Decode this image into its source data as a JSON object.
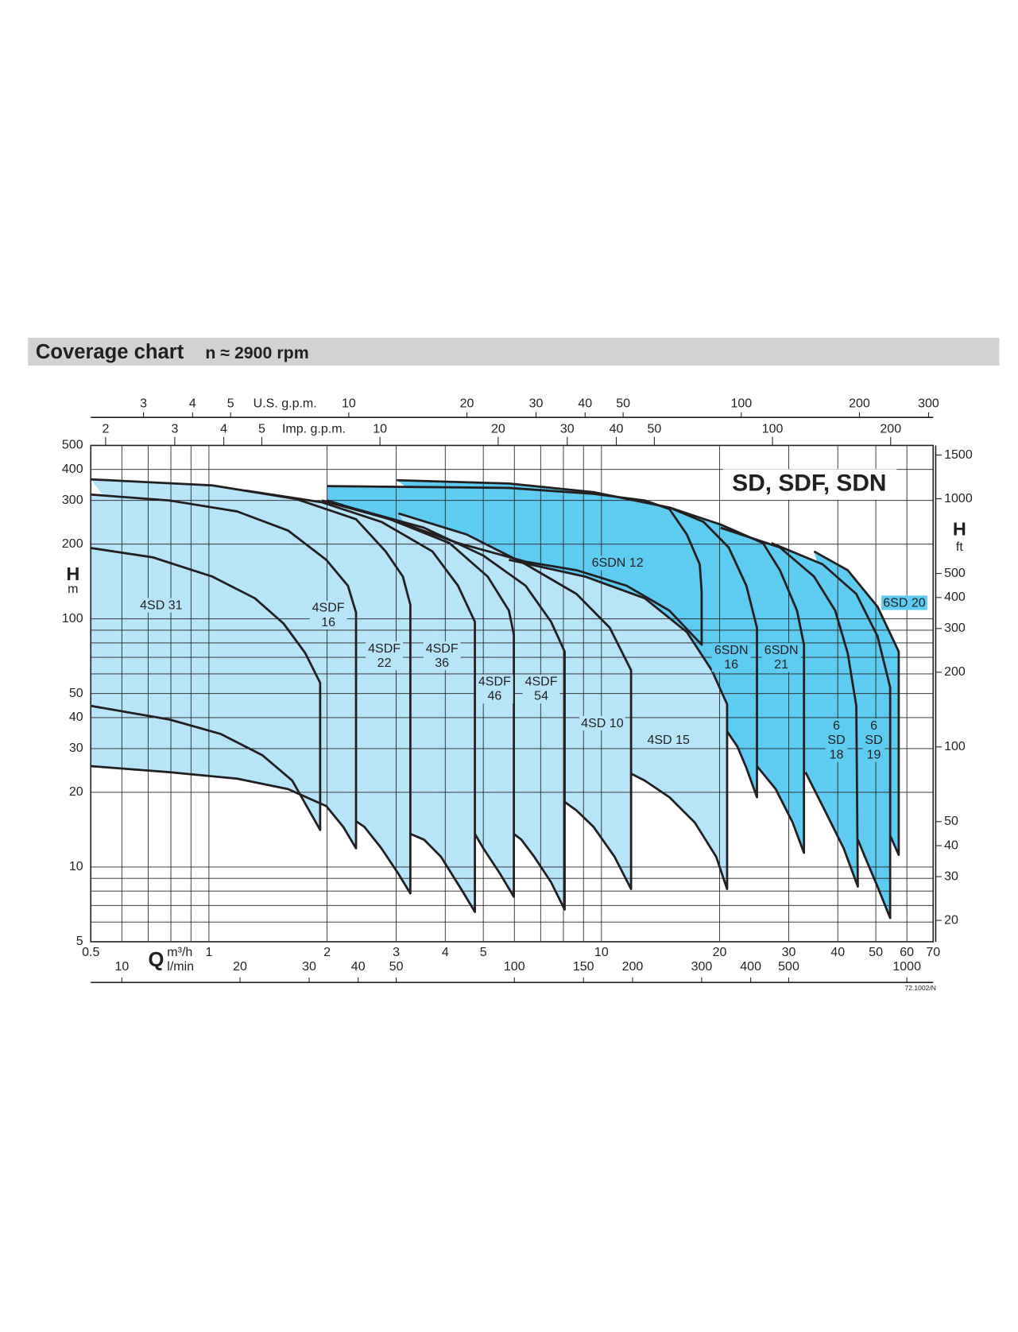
{
  "chart_data": {
    "type": "coverage",
    "title": "Coverage chart",
    "subtitle": "n ≈ 2900 rpm",
    "label": "SD, SDF, SDN",
    "code": "72.1002/N",
    "x_label": "Q",
    "x_unit": "m³/h",
    "xscale": "log",
    "xlim": [
      0.5,
      70
    ],
    "xticks": [
      0.5,
      1,
      2,
      3,
      4,
      5,
      10,
      20,
      30,
      40,
      50,
      60,
      70
    ],
    "xgrid": [
      0.5,
      0.6,
      0.7,
      0.8,
      0.9,
      1,
      2,
      3,
      4,
      5,
      6,
      7,
      8,
      9,
      10,
      20,
      30,
      40,
      50,
      60,
      70
    ],
    "y_label": "H",
    "y_unit": "m",
    "yscale": "log",
    "ylim": [
      5,
      500
    ],
    "yticks": [
      5,
      10,
      20,
      30,
      40,
      50,
      100,
      200,
      300,
      400,
      500
    ],
    "ygrid": [
      5,
      6,
      7,
      8,
      9,
      10,
      20,
      30,
      40,
      50,
      60,
      70,
      80,
      90,
      100,
      200,
      300,
      400,
      500
    ],
    "x2": {
      "unit": "l/min",
      "lim": [
        8.333,
        1166.67
      ],
      "ticks": [
        10,
        20,
        30,
        40,
        50,
        100,
        150,
        200,
        300,
        400,
        500,
        1000
      ]
    },
    "x3": {
      "unit": "U.S. g.p.m.",
      "lim": [
        2.2015,
        308.2
      ],
      "ticks": [
        3,
        4,
        5,
        10,
        20,
        30,
        40,
        50,
        100,
        200,
        300
      ]
    },
    "x4": {
      "unit": "Imp. g.p.m.",
      "lim": [
        1.8331,
        256.63
      ],
      "ticks": [
        2,
        3,
        4,
        5,
        10,
        20,
        30,
        40,
        50,
        100,
        200
      ]
    },
    "y2_label": "H",
    "y2_unit": "ft",
    "y2lim": [
      16.404,
      1640.4
    ],
    "y2ticks": [
      20,
      30,
      40,
      50,
      100,
      200,
      300,
      400,
      500,
      1000,
      1500
    ],
    "grid": true,
    "series": [
      {
        "name": "4SD 31",
        "color": "#b8e4f8",
        "x": [
          0.5,
          0.719,
          1.02,
          1.31,
          1.55,
          1.76,
          1.92,
          1.92,
          1.8,
          1.63,
          1.37,
          1.07,
          0.794,
          0.5
        ],
        "values": [
          193,
          177,
          148,
          121,
          95.7,
          72.7,
          55.2,
          14.1,
          16.9,
          22.3,
          28.2,
          34.4,
          39.3,
          44.6
        ]
      },
      {
        "name": "4SDF 16",
        "color": "#b8e4f8",
        "x": [
          0.5,
          0.794,
          1.18,
          1.59,
          1.99,
          2.26,
          2.37,
          2.37,
          2.2,
          1.99,
          1.59,
          1.18,
          0.794,
          0.5
        ],
        "values": [
          317,
          300,
          271,
          227,
          173,
          136,
          106,
          11.9,
          14.5,
          17.6,
          20.6,
          22.7,
          24.1,
          25.5
        ]
      },
      {
        "name": "4SDF 22",
        "color": "#b8e4f8",
        "x": [
          0.5,
          1.02,
          1.67,
          2.37,
          2.82,
          3.12,
          3.26,
          3.26,
          3.04,
          2.75,
          2.49,
          2.37
        ],
        "values": [
          365,
          345,
          304,
          252,
          187,
          148,
          114,
          7.83,
          9.38,
          11.9,
          14.5,
          15.3
        ]
      },
      {
        "name": "4SDF 36",
        "color": "#b8e4f8",
        "x": [
          1.24,
          1.94,
          2.75,
          3.71,
          4.31,
          4.76,
          4.76,
          4.42,
          3.9,
          3.53,
          3.26
        ],
        "values": [
          329,
          295,
          246,
          187,
          136,
          97.3,
          6.59,
          8.02,
          11.0,
          12.9,
          13.6
        ]
      },
      {
        "name": "4SDF 46",
        "color": "#b8e4f8",
        "x": [
          1.94,
          2.89,
          4.1,
          5.13,
          5.81,
          5.98,
          5.98,
          5.52,
          5.0,
          4.76
        ],
        "values": [
          300,
          252,
          202,
          148,
          108,
          86.5,
          7.59,
          9.38,
          11.9,
          13.6
        ]
      },
      {
        "name": "4SDF 54",
        "color": "#b8e4f8",
        "x": [
          2.37,
          3.53,
          5.0,
          6.41,
          7.44,
          8.06,
          8.06,
          7.44,
          6.74,
          6.25,
          5.98
        ],
        "values": [
          277,
          233,
          180,
          136,
          97.3,
          73.8,
          6.74,
          8.68,
          11.0,
          12.9,
          13.6
        ]
      },
      {
        "name": "4SD 10",
        "color": "#b8e4f8",
        "x": [
          3.04,
          4.53,
          6.41,
          8.64,
          10.5,
          11.9,
          11.9,
          10.8,
          9.55,
          8.64,
          8.06
        ],
        "values": [
          266,
          219,
          166,
          126,
          92.1,
          62.1,
          8.15,
          11.0,
          14.5,
          16.9,
          18.3
        ]
      },
      {
        "name": "4SD 15",
        "color": "#b8e4f8",
        "x": [
          5.81,
          9.08,
          12.9,
          16.5,
          19.1,
          20.9,
          20.9,
          19.6,
          17.3,
          14.9,
          12.9,
          11.9
        ],
        "values": [
          173,
          148,
          121,
          88.5,
          62.1,
          45.3,
          8.15,
          11.0,
          15.1,
          19.1,
          22.3,
          23.8
        ]
      },
      {
        "name": "6SDN 12",
        "color": "#5ecbf1",
        "x": [
          2.0,
          5.81,
          9.55,
          12.9,
          14.9,
          16.5,
          17.8,
          18.0,
          18.0,
          14.9,
          11.6,
          8.64,
          6.41,
          4.31,
          3.04,
          2.0
        ],
        "values": [
          343,
          337,
          319,
          300,
          277,
          219,
          166,
          129,
          78.7,
          108,
          136,
          157,
          170,
          202,
          246,
          300
        ]
      },
      {
        "name": "6SDN 16",
        "color": "#5ecbf1",
        "x": [
          3.01,
          5.81,
          9.55,
          14.9,
          18.2,
          21.1,
          23.4,
          24.9,
          24.9,
          23.4,
          22.2,
          20.9
        ],
        "values": [
          362,
          351,
          324,
          281,
          246,
          194,
          136,
          92.1,
          19.1,
          25.1,
          30.6,
          35.2
        ]
      },
      {
        "name": "6SDN 21",
        "color": "#5ecbf1",
        "x": [
          14.9,
          20.1,
          25.8,
          28.5,
          31.5,
          32.8,
          32.8,
          30.7,
          27.8,
          24.9
        ],
        "values": [
          281,
          240,
          202,
          157,
          108,
          78.7,
          11.4,
          15.1,
          20.6,
          25.5
        ]
      },
      {
        "name": "6 SD 18",
        "color": "#5ecbf1",
        "x": [
          20.1,
          28.5,
          34.8,
          39.4,
          42.4,
          44.6,
          45.0,
          41.4,
          36.6,
          33.1
        ],
        "values": [
          233,
          194,
          148,
          108,
          72.7,
          44.6,
          8.34,
          11.9,
          17.6,
          24.1
        ]
      },
      {
        "name": "6 SD 19",
        "color": "#5ecbf1",
        "x": [
          27.1,
          36.6,
          44.6,
          50.5,
          54.4,
          54.4,
          50.5,
          46.9,
          45.0
        ],
        "values": [
          202,
          166,
          126,
          85.1,
          53.0,
          6.23,
          8.34,
          11.0,
          12.9
        ]
      },
      {
        "name": "6SD 20",
        "color": "#5ecbf1",
        "x": [
          34.8,
          42.4,
          50.5,
          57.2,
          57.2,
          54.4
        ],
        "values": [
          187,
          157,
          112,
          73.8,
          11.2,
          13.4
        ]
      }
    ]
  }
}
